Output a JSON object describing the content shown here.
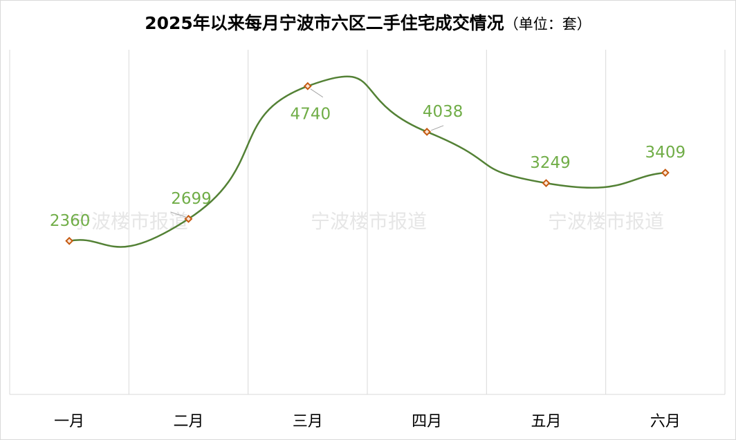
{
  "title": "2025年以来每月宁波市六区二手住宅成交情况",
  "title_unit": "（单位：套）",
  "watermark": "宁波楼市报道",
  "chart_data": {
    "type": "line",
    "smooth": true,
    "title": "2025年以来每月宁波市六区二手住宅成交情况（单位：套）",
    "categories": [
      "一月",
      "二月",
      "三月",
      "四月",
      "五月",
      "六月"
    ],
    "series": [
      {
        "values": [
          2360,
          2699,
          4740,
          4038,
          3249,
          3409
        ]
      }
    ],
    "ylim": [
      0,
      5300
    ],
    "grid": "vertical",
    "legend": "none",
    "colors": {
      "line": "#538135",
      "marker_border": "#c55a11",
      "marker_fill": "#fbe5d6",
      "label": "#70ad47",
      "grid": "#d9d9d9"
    }
  }
}
